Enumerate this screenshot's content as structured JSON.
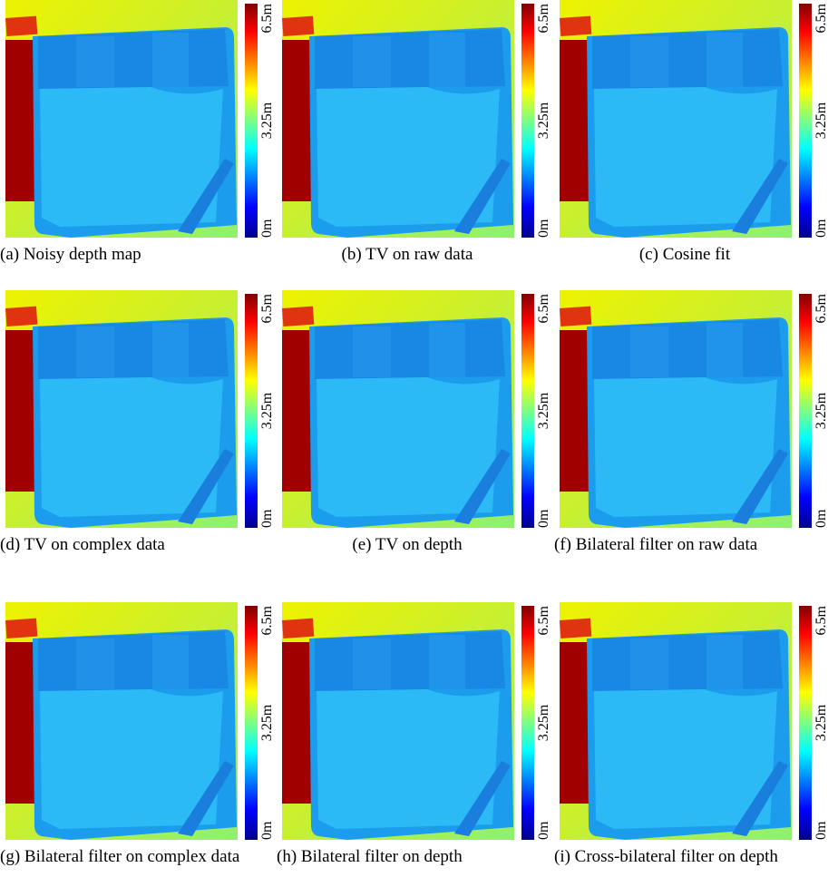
{
  "colorbar_labels": [
    "6.5m",
    "3.25m",
    "0m"
  ],
  "panels": [
    {
      "caption": "(a) Noisy depth map"
    },
    {
      "caption": "(b) TV on raw data"
    },
    {
      "caption": "(c) Cosine fit"
    },
    {
      "caption": "(d) TV on complex data"
    },
    {
      "caption": "(e) TV on depth"
    },
    {
      "caption": "(f) Bilateral filter on raw data"
    },
    {
      "caption": "(g) Bilateral filter on complex data"
    },
    {
      "caption": "(h) Bilateral filter on depth"
    },
    {
      "caption": "(i) Cross-bilateral filter on depth"
    }
  ]
}
